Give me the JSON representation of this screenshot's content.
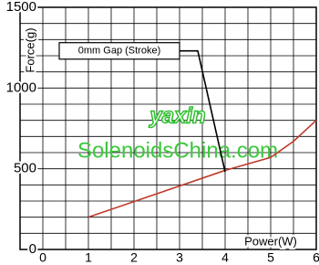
{
  "chart_data": {
    "type": "line",
    "y_label": "Force(g)",
    "x_label": "Power(W)",
    "watermark": [
      "yaxin",
      "SolenoidsChina.com"
    ],
    "series": [
      {
        "color": "#c0392b",
        "x": [
          1,
          4,
          5,
          5.5,
          6
        ],
        "values": [
          200,
          490,
          570,
          670,
          800
        ]
      },
      {
        "name": "0mm Gap (Stroke)",
        "color": "#000000",
        "x": [
          3,
          3.4,
          4
        ],
        "values": [
          1230,
          1230,
          480
        ]
      }
    ],
    "xlim": [
      -0.5,
      6
    ],
    "xticks": [
      0,
      1,
      2,
      3,
      4,
      5,
      6
    ],
    "ylim": [
      0,
      1500
    ],
    "yticks": [
      0,
      500,
      1000,
      1500
    ],
    "x_grid": [
      -0.5,
      0,
      0.5,
      1,
      1.5,
      2,
      2.5,
      3,
      3.5,
      4,
      4.5,
      5,
      5.5,
      6
    ],
    "y_grid": [
      0,
      100,
      200,
      300,
      400,
      500,
      600,
      700,
      800,
      900,
      1000,
      1100,
      1200,
      1300,
      1400,
      1500
    ]
  }
}
